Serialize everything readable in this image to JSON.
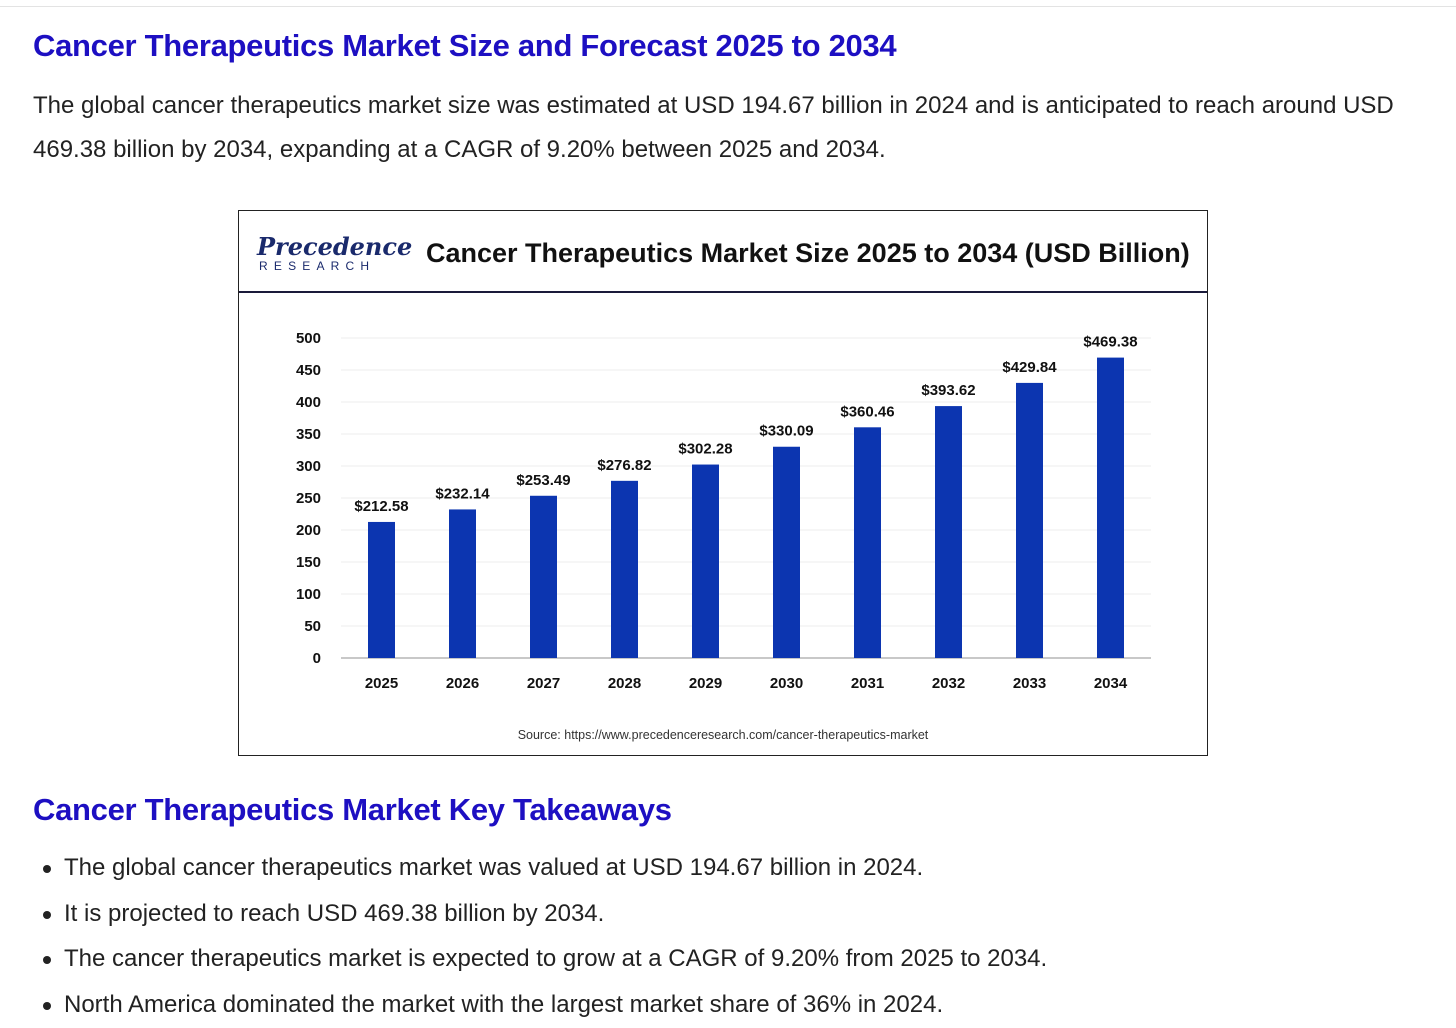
{
  "article": {
    "title": "Cancer Therapeutics Market Size and Forecast 2025 to 2034",
    "intro": "The global cancer therapeutics market size was estimated at USD 194.67 billion in 2024 and is anticipated to reach around USD 469.38 billion by 2034, expanding at a CAGR of 9.20% between 2025 and 2034."
  },
  "logo": {
    "brand_top": "Precedence",
    "brand_bottom": "RESEARCH",
    "color": "#1a2a6c"
  },
  "chart_data": {
    "type": "bar",
    "title": "Cancer Therapeutics Market Size 2025 to 2034 (USD Billion)",
    "categories": [
      "2025",
      "2026",
      "2027",
      "2028",
      "2029",
      "2030",
      "2031",
      "2032",
      "2033",
      "2034"
    ],
    "values": [
      212.58,
      232.14,
      253.49,
      276.82,
      302.28,
      330.09,
      360.46,
      393.62,
      429.84,
      469.38
    ],
    "value_labels": [
      "$212.58",
      "$232.14",
      "$253.49",
      "$276.82",
      "$302.28",
      "$330.09",
      "$360.46",
      "$393.62",
      "$429.84",
      "$469.38"
    ],
    "ylim": [
      0,
      500
    ],
    "yticks": [
      0,
      50,
      100,
      150,
      200,
      250,
      300,
      350,
      400,
      450,
      500
    ],
    "xlabel": "",
    "ylabel": "",
    "bar_color": "#0c35b0",
    "grid": true,
    "source": "Source: https://www.precedenceresearch.com/cancer-therapeutics-market"
  },
  "takeaways": {
    "title": "Cancer Therapeutics Market Key Takeaways",
    "items": [
      "The global cancer therapeutics market was valued at USD 194.67 billion in 2024.",
      "It is projected to reach USD 469.38 billion by 2034.",
      "The cancer therapeutics market is expected to grow at a CAGR of 9.20% from 2025 to 2034.",
      "North America dominated the market with the largest market share of 36% in 2024."
    ]
  }
}
